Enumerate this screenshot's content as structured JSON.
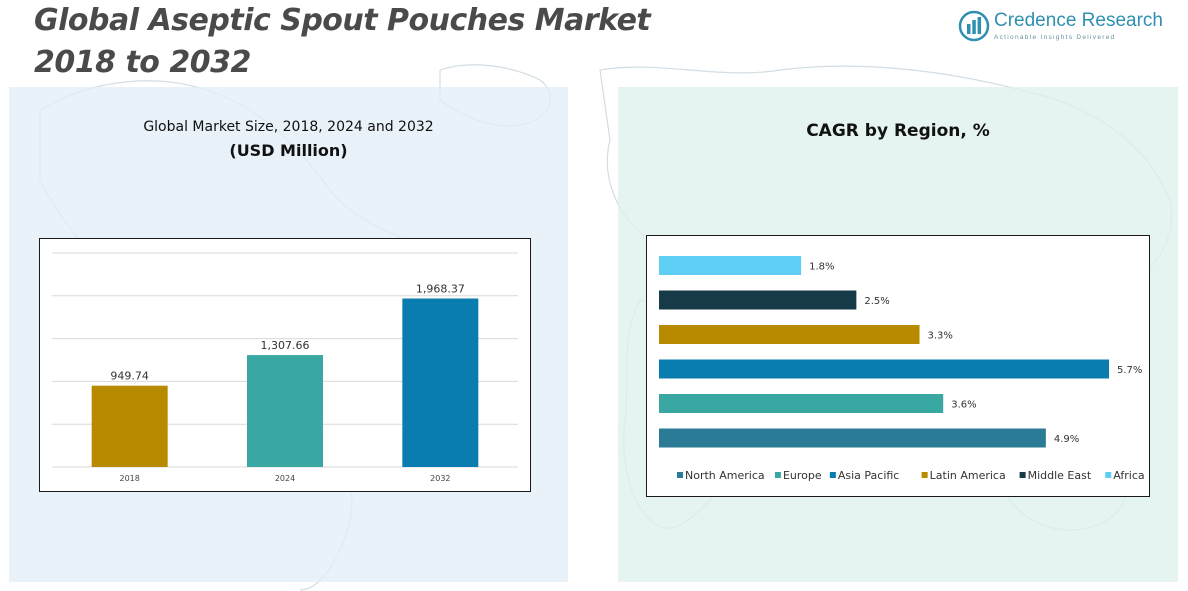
{
  "header": {
    "title_line1": "Global Aseptic Spout Pouches Market",
    "title_line2": "2018 to 2032"
  },
  "brand": {
    "name": "Credence Research",
    "tagline": "Actionable Insights Delivered",
    "logo_icon": "credence-research-logo-icon",
    "color": "#2f8fb0"
  },
  "left_panel": {
    "title_line1": "Global Market Size, 2018, 2024 and 2032",
    "title_line2": "(USD Million)"
  },
  "right_panel": {
    "title": "CAGR by Region, %"
  },
  "chart_data": [
    {
      "type": "bar",
      "title": "Global Market Size, 2018, 2024 and 2032",
      "subtitle": "(USD Million)",
      "categories": [
        "2018",
        "2024",
        "2032"
      ],
      "values": [
        949.74,
        1307.66,
        1968.37
      ],
      "value_labels": [
        "949.74",
        "1,307.66",
        "1,968.37"
      ],
      "colors": [
        "#b88a00",
        "#3aa8a2",
        "#0a7db0"
      ],
      "ylim": [
        0,
        2500
      ],
      "grid": true,
      "legend": "none"
    },
    {
      "type": "bar",
      "orientation": "horizontal",
      "title": "CAGR by Region, %",
      "series": [
        {
          "name": "Africa",
          "value": 1.8,
          "label": "1.8%",
          "color": "#5fcef5"
        },
        {
          "name": "Middle East",
          "value": 2.5,
          "label": "2.5%",
          "color": "#173a48"
        },
        {
          "name": "Latin America",
          "value": 3.3,
          "label": "3.3%",
          "color": "#b88a00"
        },
        {
          "name": "Asia Pacific",
          "value": 5.7,
          "label": "5.7%",
          "color": "#0a7db0"
        },
        {
          "name": "Europe",
          "value": 3.6,
          "label": "3.6%",
          "color": "#3aa8a2"
        },
        {
          "name": "North America",
          "value": 4.9,
          "label": "4.9%",
          "color": "#2b7b96"
        }
      ],
      "legend_order": [
        "North America",
        "Europe",
        "Asia Pacific",
        "Latin America",
        "Middle East",
        "Africa"
      ],
      "xlim": [
        0,
        5.7
      ],
      "grid": false,
      "legend": "bottom"
    }
  ]
}
